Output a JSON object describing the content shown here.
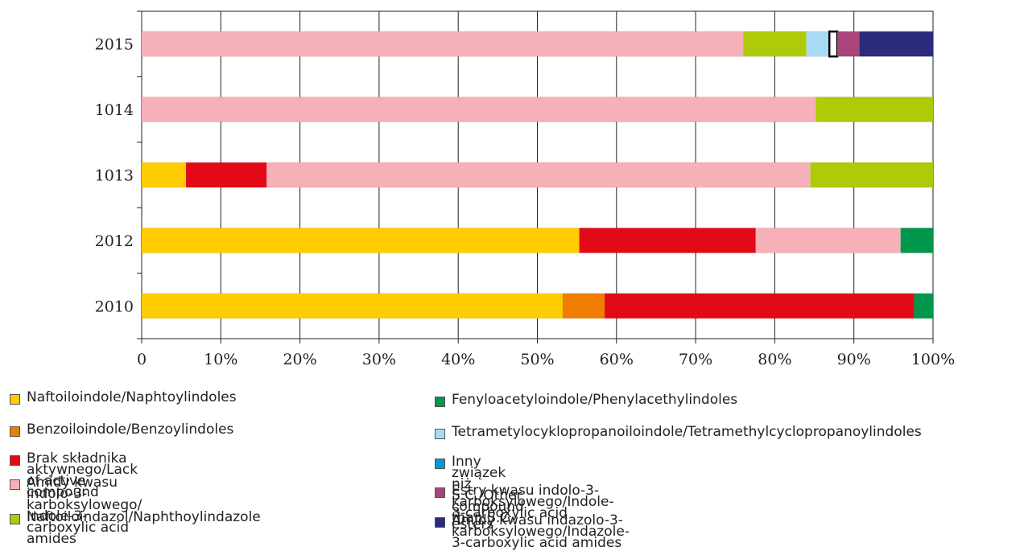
{
  "chart_data": {
    "type": "bar",
    "orientation": "horizontal",
    "stacked": "percent",
    "categories": [
      "2015",
      "1014",
      "1013",
      "2012",
      "2010"
    ],
    "xlim": [
      0,
      100
    ],
    "x_ticks": [
      "0",
      "10%",
      "20%",
      "30%",
      "40%",
      "50%",
      "60%",
      "70%",
      "80%",
      "90%",
      "100%"
    ],
    "grid": true,
    "legend_position": "bottom",
    "series": [
      {
        "name": "Naftoiloindole/Naphtoylindoles",
        "color": "#FFCC00",
        "values": [
          0,
          0,
          5.6,
          55.3,
          53.2
        ]
      },
      {
        "name": "Benzoiloindole/Benzoylindoles",
        "color": "#EE7D00",
        "values": [
          0,
          0,
          0,
          0,
          5.3
        ]
      },
      {
        "name": "Brak składnika aktywnego/Lack of active compound",
        "color": "#E30A17",
        "values": [
          0,
          0,
          10.2,
          22.3,
          39.1
        ]
      },
      {
        "name": "Amidy kwasu indolo-3-karboksylowego/\nIndole-3-carboxylic acid amides",
        "color": "#F6B0B7",
        "values": [
          76.0,
          85.2,
          68.7,
          18.3,
          0
        ]
      },
      {
        "name": "Naftoiloindazol/Naphthoylindazole",
        "color": "#AFCB08",
        "values": [
          8.0,
          14.8,
          15.5,
          0,
          0
        ]
      },
      {
        "name": "Fenyloacetyloindole/Phenylacethylindoles",
        "color": "#00964B",
        "values": [
          0,
          0,
          0,
          4.1,
          2.4
        ]
      },
      {
        "name": "Tetrametylocyklopropanoiloindole/Tetramethylcyclopropanoylindoles",
        "color": "#A8DAF5",
        "values": [
          2.9,
          0,
          0,
          0,
          0
        ]
      },
      {
        "name": "Inny związek niż S.C./Other compound than S.C.",
        "color": "#0098D8",
        "values": [
          0,
          0,
          0,
          0,
          0
        ]
      },
      {
        "name": "",
        "color": "#FFFFFF",
        "outlined": true,
        "values": [
          1.0,
          0,
          0,
          0,
          0
        ]
      },
      {
        "name": "Estry kwasu indolo-3-karboksylowego/Indole-3-carboxylic acid esters",
        "color": "#A8457A",
        "values": [
          2.8,
          0,
          0,
          0,
          0
        ]
      },
      {
        "name": "Amidy kwasu indazolo-3-karboksylowego/Indazole-3-carboxylic acid amides",
        "color": "#2B2A7C",
        "values": [
          9.3,
          0,
          0,
          0,
          0
        ]
      }
    ]
  }
}
